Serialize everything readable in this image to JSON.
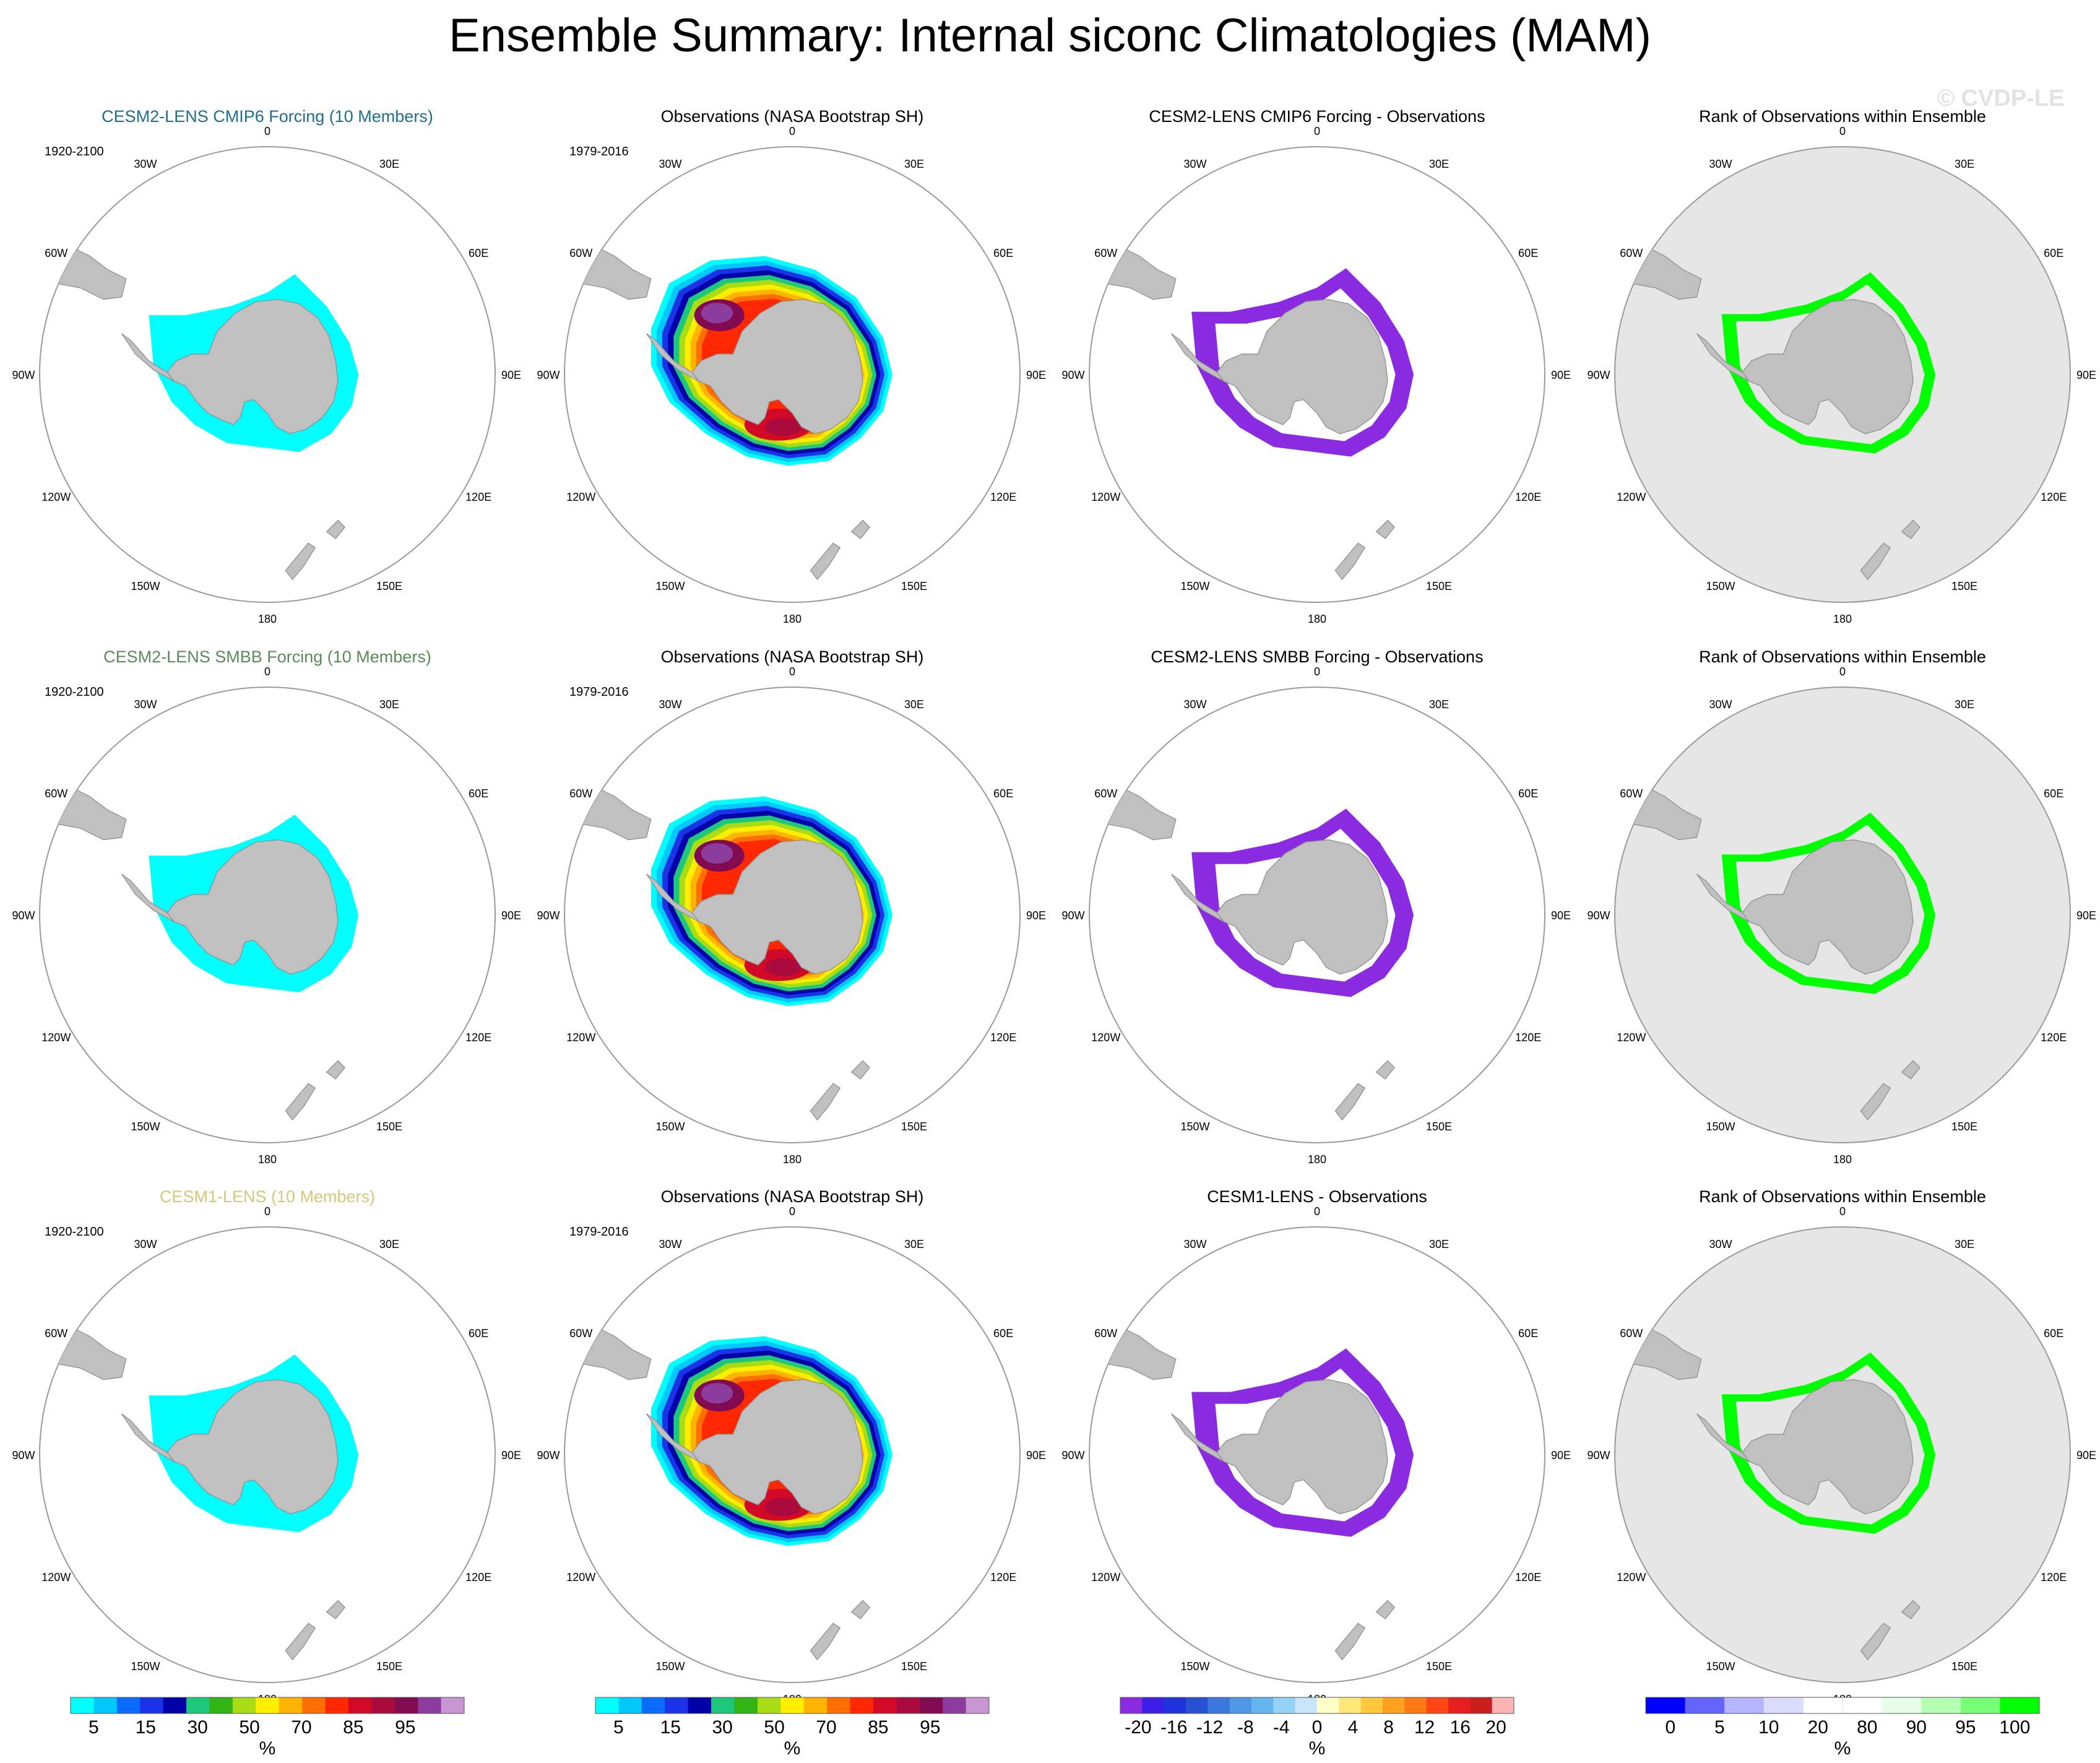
{
  "title": "Ensemble Summary: Internal siconc Climatologies (MAM)",
  "watermark": "© CVDP-LE",
  "colors": {
    "land": "#c0c0c0",
    "ocean_circle_edge": "#9a9a9a",
    "rank_background": "#e6e6e6",
    "model_ice": "#00ffff",
    "bias_purple": "#8a2be2",
    "rank_green": "#00ff00",
    "title_cmip6": "#1f6e8c",
    "title_smbb": "#5b8a5b",
    "title_cesm1": "#d6c77a"
  },
  "longitude_labels": [
    "0",
    "30E",
    "60E",
    "90E",
    "120E",
    "150E",
    "180",
    "150W",
    "120W",
    "90W",
    "60W",
    "30W"
  ],
  "rows": [
    {
      "model_title": "CESM2-LENS CMIP6 Forcing (10 Members)",
      "title_color": "#1f6e8c",
      "model_period": "1920-2100",
      "obs_title": "Observations (NASA Bootstrap SH)",
      "obs_period": "1979-2016",
      "diff_title": "CESM2-LENS CMIP6 Forcing - Observations",
      "rank_title": "Rank of Observations within Ensemble"
    },
    {
      "model_title": "CESM2-LENS SMBB Forcing (10 Members)",
      "title_color": "#5b8a5b",
      "model_period": "1920-2100",
      "obs_title": "Observations (NASA Bootstrap SH)",
      "obs_period": "1979-2016",
      "diff_title": "CESM2-LENS SMBB Forcing - Observations",
      "rank_title": "Rank of Observations within Ensemble"
    },
    {
      "model_title": "CESM1-LENS (10 Members)",
      "title_color": "#d6c77a",
      "model_period": "1920-2100",
      "obs_title": "Observations (NASA Bootstrap SH)",
      "obs_period": "1979-2016",
      "diff_title": "CESM1-LENS - Observations",
      "rank_title": "Rank of Observations within Ensemble"
    }
  ],
  "colorbars": [
    {
      "name": "model-colorbar",
      "unit": "%",
      "colors": [
        "#00ffff",
        "#00c8ff",
        "#0a6cff",
        "#1a33e8",
        "#0000a8",
        "#1ec87a",
        "#32b414",
        "#a8dc14",
        "#ffee00",
        "#ffb400",
        "#ff6e00",
        "#ff2800",
        "#d20a28",
        "#aa0a3c",
        "#820a50",
        "#8c3c9c",
        "#c896d2"
      ],
      "labels": [
        "5",
        "15",
        "30",
        "50",
        "70",
        "85",
        "95"
      ]
    },
    {
      "name": "obs-colorbar",
      "unit": "%",
      "colors": [
        "#00ffff",
        "#00c8ff",
        "#0a6cff",
        "#1a33e8",
        "#0000a8",
        "#1ec87a",
        "#32b414",
        "#a8dc14",
        "#ffee00",
        "#ffb400",
        "#ff6e00",
        "#ff2800",
        "#d20a28",
        "#aa0a3c",
        "#820a50",
        "#8c3c9c",
        "#c896d2"
      ],
      "labels": [
        "5",
        "15",
        "30",
        "50",
        "70",
        "85",
        "95"
      ]
    },
    {
      "name": "diff-colorbar",
      "unit": "%",
      "colors": [
        "#8a2be2",
        "#3c1ee6",
        "#1e32dc",
        "#2850d2",
        "#3c78dc",
        "#5096e6",
        "#64b4f0",
        "#96d2f5",
        "#c8e6fa",
        "#ffffc8",
        "#ffe678",
        "#ffc83c",
        "#ffa01e",
        "#ff7814",
        "#ff4614",
        "#e61e1e",
        "#c81e1e",
        "#ffb4b4"
      ],
      "labels": [
        "-20",
        "-16",
        "-12",
        "-8",
        "-4",
        "0",
        "4",
        "8",
        "12",
        "16",
        "20"
      ]
    },
    {
      "name": "rank-colorbar",
      "unit": "%",
      "colors": [
        "#0000ff",
        "#6464ff",
        "#b4b4ff",
        "#dcdcff",
        "#ffffff",
        "#ffffff",
        "#e6ffe6",
        "#b4ffb4",
        "#78ff78",
        "#00ff00"
      ],
      "labels": [
        "0",
        "5",
        "10",
        "20",
        "80",
        "90",
        "95",
        "100"
      ]
    }
  ]
}
